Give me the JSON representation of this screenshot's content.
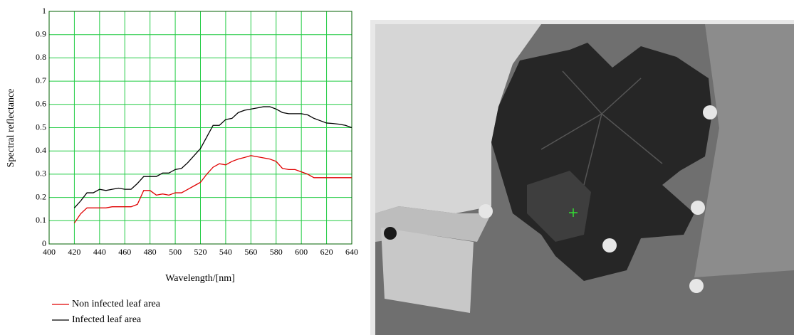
{
  "chart_data": {
    "type": "line",
    "xlabel": "Wavelength/[nm]",
    "ylabel": "Spectral reflectance",
    "xlim": [
      400,
      640
    ],
    "xticks": [
      400,
      420,
      440,
      460,
      480,
      500,
      520,
      540,
      560,
      580,
      600,
      620,
      640
    ],
    "ylim": [
      0,
      1
    ],
    "yticks": [
      0,
      0.1,
      0.2,
      0.3,
      0.4,
      0.5,
      0.6,
      0.7,
      0.8,
      0.9,
      1
    ],
    "grid": true,
    "grid_color": "#22cc44",
    "x": [
      420,
      425,
      430,
      435,
      440,
      445,
      450,
      455,
      460,
      465,
      470,
      475,
      480,
      485,
      490,
      495,
      500,
      505,
      510,
      515,
      520,
      525,
      530,
      535,
      540,
      545,
      550,
      555,
      560,
      565,
      570,
      575,
      580,
      585,
      590,
      595,
      600,
      605,
      610,
      615,
      620,
      625,
      630,
      635,
      640
    ],
    "series": [
      {
        "name": "Non infected leaf area",
        "color": "#e00000",
        "values": [
          0.09,
          0.13,
          0.155,
          0.155,
          0.155,
          0.155,
          0.16,
          0.16,
          0.16,
          0.16,
          0.17,
          0.23,
          0.23,
          0.21,
          0.215,
          0.21,
          0.22,
          0.22,
          0.235,
          0.25,
          0.265,
          0.3,
          0.33,
          0.345,
          0.34,
          0.355,
          0.365,
          0.372,
          0.38,
          0.375,
          0.37,
          0.365,
          0.355,
          0.325,
          0.32,
          0.32,
          0.31,
          0.3,
          0.285,
          0.285,
          0.285,
          0.285,
          0.285,
          0.285,
          0.285
        ]
      },
      {
        "name": "Infected leaf area",
        "color": "#000000",
        "values": [
          0.155,
          0.185,
          0.22,
          0.22,
          0.235,
          0.23,
          0.235,
          0.24,
          0.235,
          0.235,
          0.26,
          0.29,
          0.29,
          0.29,
          0.305,
          0.305,
          0.32,
          0.325,
          0.35,
          0.38,
          0.41,
          0.46,
          0.51,
          0.51,
          0.535,
          0.54,
          0.565,
          0.575,
          0.58,
          0.585,
          0.59,
          0.59,
          0.58,
          0.565,
          0.56,
          0.56,
          0.56,
          0.555,
          0.54,
          0.53,
          0.52,
          0.518,
          0.515,
          0.51,
          0.5
        ]
      }
    ]
  }
}
